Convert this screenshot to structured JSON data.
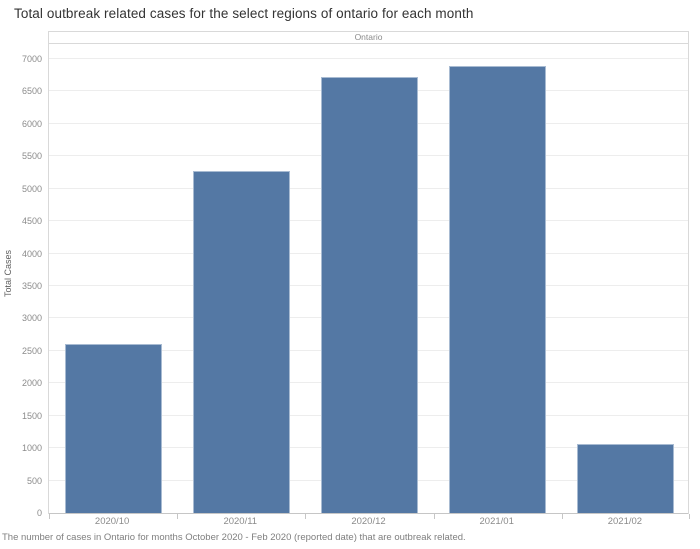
{
  "title": "Total outbreak related cases for the select regions of ontario for each month",
  "panel_header": "Ontario",
  "caption": "The number of cases in Ontario for months October 2020 - Feb 2020 (reported date) that are outbreak related.",
  "colors": {
    "bar_fill": "#5478a4",
    "bar_border": "#a8bbd2",
    "gridline": "#ededed",
    "axis_line": "#c6c6c6",
    "frame_border": "#d9d9d9",
    "tick_label": "#8b8b8b",
    "title_text": "#333333",
    "axis_title_text": "#5f5f5f",
    "caption_text": "#7f7f7f"
  },
  "chart_data": {
    "type": "bar",
    "title": "Total outbreak related cases for the select regions of ontario for each month",
    "panel": "Ontario",
    "categories": [
      "2020/10",
      "2020/11",
      "2020/12",
      "2021/01",
      "2021/02"
    ],
    "values": [
      2600,
      5280,
      6730,
      6900,
      1060
    ],
    "xlabel": "",
    "ylabel": "Total Cases",
    "ylim": [
      0,
      7000
    ],
    "yticks": [
      0,
      500,
      1000,
      1500,
      2000,
      2500,
      3000,
      3500,
      4000,
      4500,
      5000,
      5500,
      6000,
      6500,
      7000
    ],
    "grid": true,
    "legend": false
  }
}
